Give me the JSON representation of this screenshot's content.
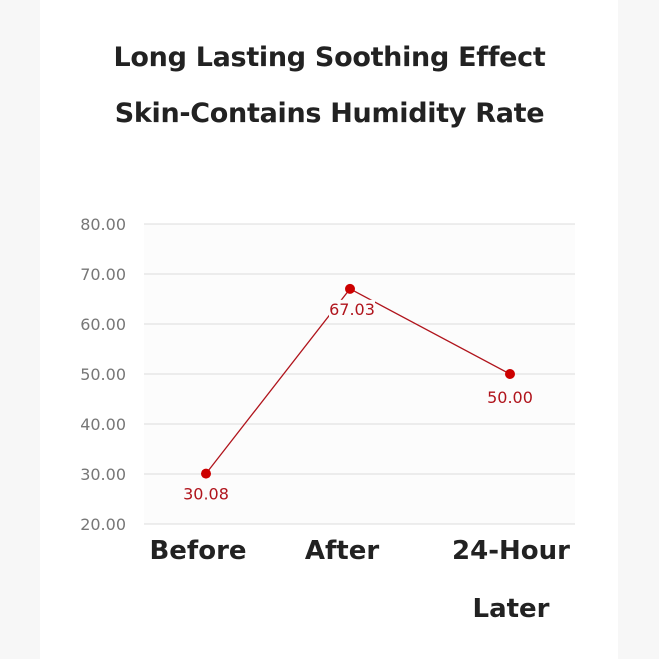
{
  "title": {
    "line1": "Long Lasting Soothing Effect",
    "line2": "Skin-Contains Humidity Rate"
  },
  "colors": {
    "line": "#b0141c",
    "marker": "#cc0000",
    "grid": "#dddddd",
    "text": "#222222",
    "tick": "#777777"
  },
  "y_ticks": [
    "80.00",
    "70.00",
    "60.00",
    "50.00",
    "40.00",
    "30.00",
    "20.00"
  ],
  "x_labels": [
    {
      "line1": "Before",
      "line2": ""
    },
    {
      "line1": "After",
      "line2": ""
    },
    {
      "line1": "24-Hour",
      "line2": "Later"
    }
  ],
  "data_labels": [
    "30.08",
    "67.03",
    "50.00"
  ],
  "chart_data": {
    "type": "line",
    "title": "Long Lasting Soothing Effect Skin-Contains Humidity Rate",
    "categories": [
      "Before",
      "After",
      "24-Hour Later"
    ],
    "series": [
      {
        "name": "Skin-Contains Humidity Rate",
        "values": [
          30.08,
          67.03,
          50.0
        ]
      }
    ],
    "xlabel": "",
    "ylabel": "",
    "ylim": [
      20,
      80
    ],
    "yticks": [
      20,
      30,
      40,
      50,
      60,
      70,
      80
    ],
    "grid": true,
    "legend": "none"
  }
}
